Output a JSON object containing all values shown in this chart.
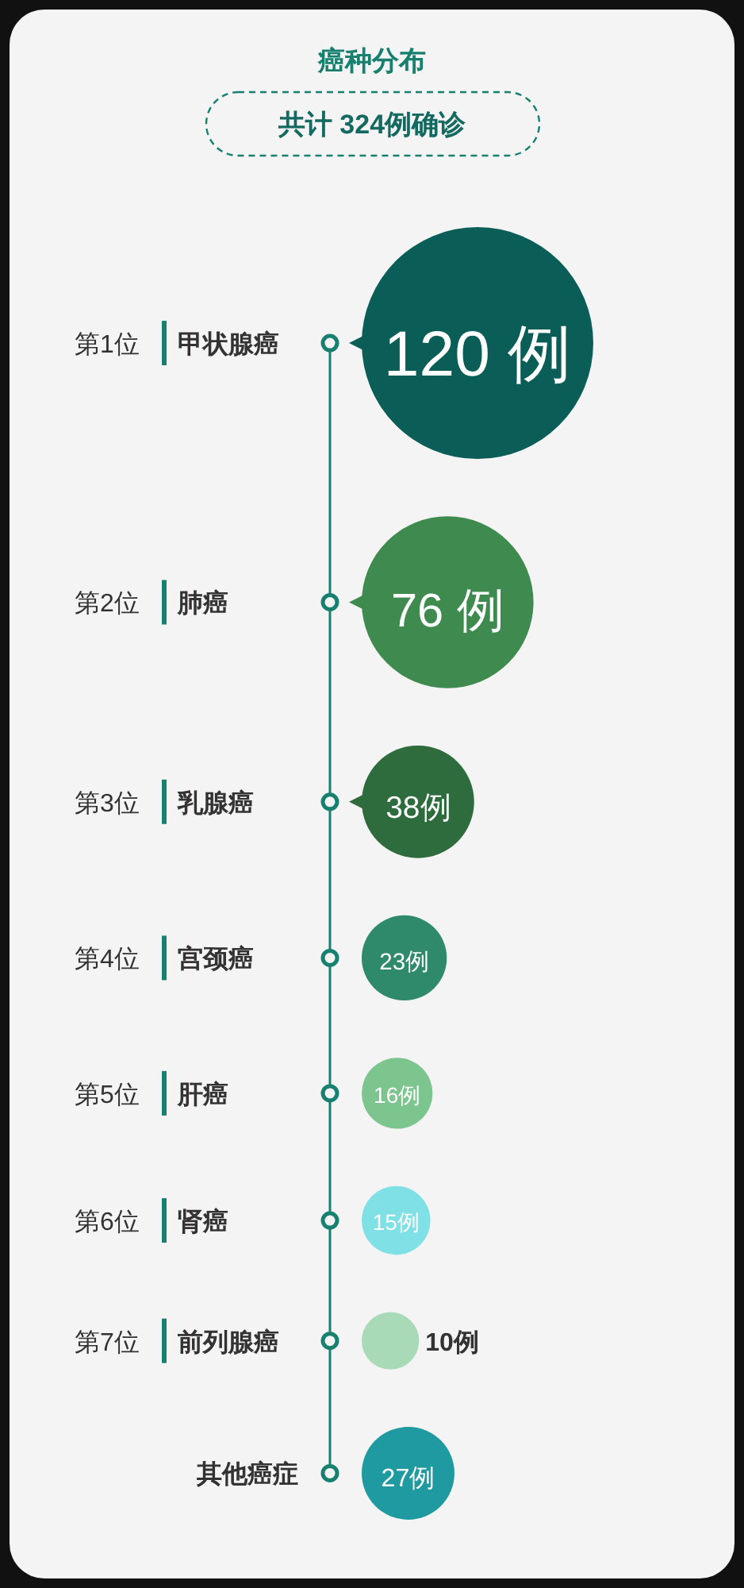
{
  "chart_data": {
    "type": "other",
    "title": "癌种分布",
    "subtitle": "共计 324例确诊",
    "categories": [
      "甲状腺癌",
      "肺癌",
      "乳腺癌",
      "宫颈癌",
      "肝癌",
      "肾癌",
      "前列腺癌",
      "其他癌症"
    ],
    "values": [
      120,
      76,
      38,
      23,
      16,
      15,
      10,
      27
    ],
    "value_labels": [
      "120 例",
      "76 例",
      "38例",
      "23例",
      "16例",
      "15例",
      "10例",
      "27例"
    ],
    "colors": [
      "#0b5e57",
      "#3f8b4f",
      "#2e6b3d",
      "#2f8a6c",
      "#7cc58e",
      "#7fe0e6",
      "#a8dab8",
      "#1e9aa0"
    ],
    "annotations": [
      {
        "text": "第1位",
        "y": "甲状腺癌"
      },
      {
        "text": "第2位",
        "y": "肺癌"
      },
      {
        "text": "第3位",
        "y": "乳腺癌"
      },
      {
        "text": "第4位",
        "y": "宫颈癌"
      },
      {
        "text": "第5位",
        "y": "肝癌"
      },
      {
        "text": "第6位",
        "y": "肾癌"
      },
      {
        "text": "第7位",
        "y": "前列腺癌"
      }
    ]
  }
}
